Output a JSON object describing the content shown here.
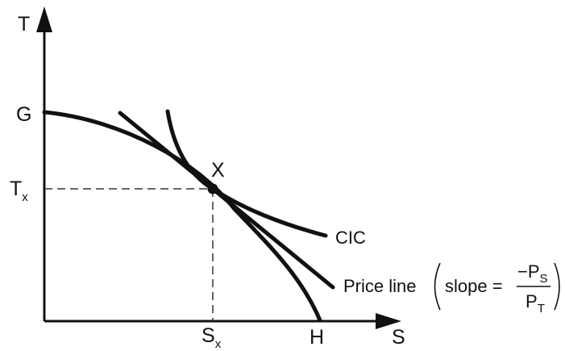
{
  "diagram": {
    "axes": {
      "y_label": "T",
      "x_label": "S"
    },
    "points": {
      "g_label": "G",
      "h_label": "H",
      "x_label": "X",
      "tx_main": "T",
      "tx_sub": "x",
      "sx_main": "S",
      "sx_sub": "x"
    },
    "curves": {
      "cic_label": "CIC",
      "price_line_label": "Price line",
      "slope_prefix": "slope =",
      "slope_minus": "−",
      "ps_main": "P",
      "ps_sub": "S",
      "pt_main": "P",
      "pt_sub": "T"
    },
    "colors": {
      "ink": "#111111",
      "background": "#ffffff"
    }
  }
}
